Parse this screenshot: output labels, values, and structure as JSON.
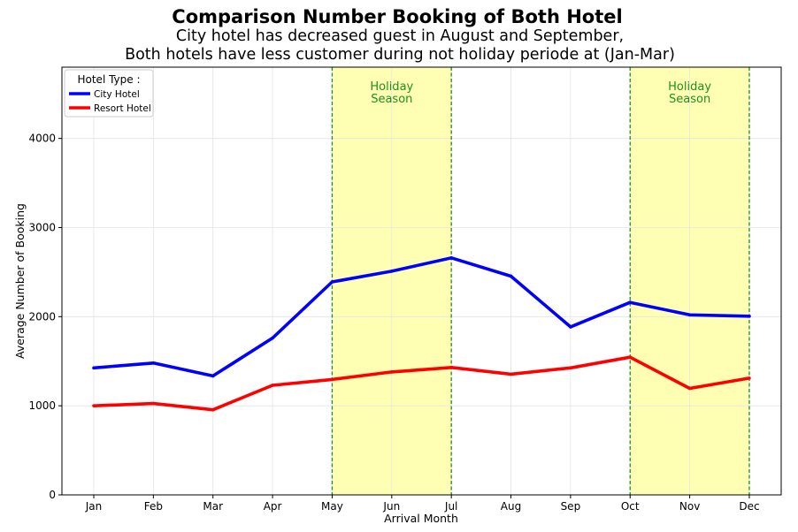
{
  "chart_data": {
    "type": "line",
    "title": "Comparison Number Booking of Both Hotel",
    "subtitle_lines": [
      "City hotel has decreased guest in August and September,",
      "Both hotels have less customer during not holiday periode at (Jan-Mar)"
    ],
    "xlabel": "Arrival Month",
    "ylabel": "Average Number of Booking",
    "categories": [
      "Jan",
      "Feb",
      "Mar",
      "Apr",
      "May",
      "Jun",
      "Jul",
      "Aug",
      "Sep",
      "Oct",
      "Nov",
      "Dec"
    ],
    "ylim": [
      0,
      4800
    ],
    "yticks": [
      0,
      1000,
      2000,
      3000,
      4000
    ],
    "grid": true,
    "legend": {
      "title": "Hotel Type :",
      "placement": "top-left"
    },
    "series": [
      {
        "name": "City Hotel",
        "color": "#0000ff",
        "values": [
          1425,
          1480,
          1335,
          1760,
          2390,
          2510,
          2660,
          2455,
          1885,
          2160,
          2020,
          2005
        ]
      },
      {
        "name": "Resort Hotel",
        "color": "#ff0000",
        "values": [
          1000,
          1025,
          955,
          1230,
          1295,
          1380,
          1430,
          1355,
          1425,
          1545,
          1195,
          1310
        ]
      }
    ],
    "highlights": [
      {
        "from": "May",
        "to": "Jul",
        "color": "#ffffb3",
        "border_color": "#1f8f1f",
        "label_lines": [
          "Holiday",
          "Season"
        ]
      },
      {
        "from": "Oct",
        "to": "Dec",
        "color": "#ffffb3",
        "border_color": "#1f8f1f",
        "label_lines": [
          "Holiday",
          "Season"
        ]
      }
    ]
  }
}
